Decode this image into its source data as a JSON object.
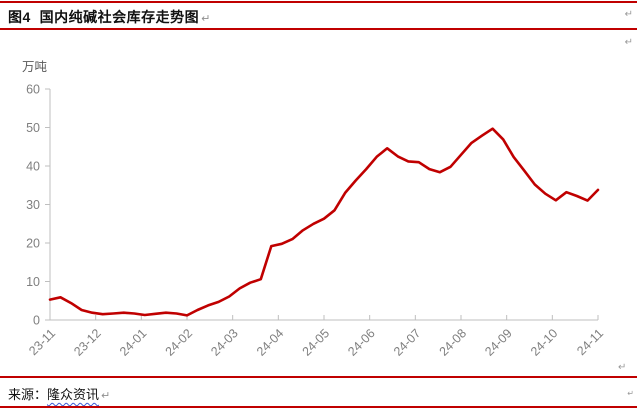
{
  "header": {
    "title": "图4  国内纯碱社会库存走势图"
  },
  "footer": {
    "source_label": "来源：",
    "source_name": "隆众资讯"
  },
  "marks": {
    "return": "↵"
  },
  "colors": {
    "series_red": "#c00000",
    "border_red": "#c00000",
    "axis_gray": "#bfbfbf",
    "tick_label_gray": "#7f7f7f",
    "unit_label_gray": "#595959",
    "squiggle_blue": "#3c5bd6"
  },
  "chart_data": {
    "type": "line",
    "title": "国内纯碱社会库存走势图",
    "unit_label": "万吨",
    "xlabel": "",
    "ylabel": "万吨",
    "ylim": [
      0,
      60
    ],
    "y_ticks": [
      0,
      10,
      20,
      30,
      40,
      50,
      60
    ],
    "x_tick_labels": [
      "23-11",
      "23-12",
      "24-01",
      "24-02",
      "24-03",
      "24-04",
      "24-05",
      "24-06",
      "24-07",
      "24-08",
      "24-09",
      "24-10",
      "24-11"
    ],
    "x_frequency": "weekly",
    "grid": false,
    "legend_position": "none",
    "series": [
      {
        "name": "国内纯碱社会库存",
        "color": "#c00000",
        "values": [
          5.3,
          5.9,
          4.4,
          2.6,
          1.9,
          1.5,
          1.7,
          1.9,
          1.7,
          1.3,
          1.6,
          1.9,
          1.7,
          1.2,
          2.6,
          3.8,
          4.7,
          6.1,
          8.2,
          9.7,
          10.6,
          19.2,
          19.8,
          21.0,
          23.3,
          25.0,
          26.3,
          28.5,
          33.0,
          36.2,
          39.2,
          42.4,
          44.6,
          42.5,
          41.2,
          41.0,
          39.2,
          38.4,
          39.8,
          42.9,
          46.0,
          47.9,
          49.7,
          46.9,
          42.3,
          38.8,
          35.2,
          32.8,
          31.1,
          33.2,
          32.2,
          31.0,
          33.8
        ]
      }
    ]
  }
}
